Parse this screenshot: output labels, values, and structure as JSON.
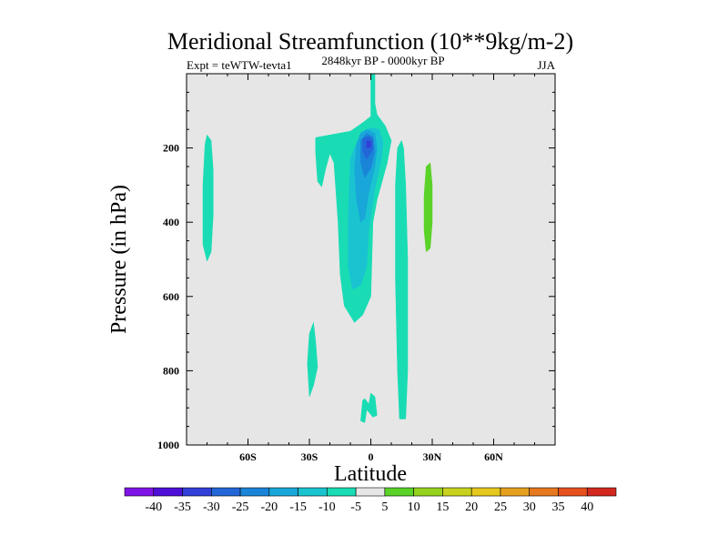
{
  "chart_data": {
    "type": "heatmap",
    "title": "Meridional Streamfunction (10**9kg/m-2)",
    "subtitle_left": "Expt = teWTW-tevta1",
    "subtitle_center": "2848kyr BP - 0000kyr BP",
    "subtitle_right": "JJA",
    "xlabel": "Latitude",
    "ylabel": "Pressure (in hPa)",
    "xlim": [
      -90,
      90
    ],
    "ylim": [
      1000,
      0
    ],
    "x_ticks": [
      {
        "value": -60,
        "label": "60S"
      },
      {
        "value": -30,
        "label": "30S"
      },
      {
        "value": 0,
        "label": "0"
      },
      {
        "value": 30,
        "label": "30N"
      },
      {
        "value": 60,
        "label": "60N"
      }
    ],
    "y_ticks": [
      {
        "value": 200,
        "label": "200"
      },
      {
        "value": 400,
        "label": "400"
      },
      {
        "value": 600,
        "label": "600"
      },
      {
        "value": 800,
        "label": "800"
      },
      {
        "value": 1000,
        "label": "1000"
      }
    ],
    "contour_levels": [
      -40,
      -35,
      -30,
      -25,
      -20,
      -15,
      -10,
      -5,
      5,
      10,
      15,
      20,
      25,
      30,
      35,
      40
    ],
    "colorbar_colors": [
      "#7f14e6",
      "#4e0fd6",
      "#3240d8",
      "#2366d8",
      "#1a85d8",
      "#19a6d8",
      "#19c4d0",
      "#19dcb4",
      "#e6e6e6",
      "#5ad228",
      "#96d21e",
      "#c8d21e",
      "#e6c81e",
      "#e6a01e",
      "#e6781e",
      "#e6501e",
      "#d2281e"
    ],
    "background_color": "#e6e6e6",
    "regions": [
      {
        "name": "sh-subtropic-cell-minus5",
        "level": "-5",
        "color": "#19dcb4",
        "points": [
          [
            -80,
            165
          ],
          [
            -78,
            180
          ],
          [
            -77,
            260
          ],
          [
            -77,
            380
          ],
          [
            -78,
            480
          ],
          [
            -80,
            505
          ],
          [
            -82,
            460
          ],
          [
            -82,
            300
          ],
          [
            -81,
            190
          ]
        ]
      },
      {
        "name": "main-tropical-cell-minus5",
        "level": "-5",
        "color": "#19dcb4",
        "points": [
          [
            -27,
            210
          ],
          [
            -26,
            290
          ],
          [
            -24,
            305
          ],
          [
            -22,
            255
          ],
          [
            -20,
            215
          ],
          [
            -18,
            240
          ],
          [
            -16,
            400
          ],
          [
            -15,
            540
          ],
          [
            -13,
            625
          ],
          [
            -8,
            670
          ],
          [
            -4,
            650
          ],
          [
            0,
            600
          ],
          [
            1,
            400
          ],
          [
            3,
            340
          ],
          [
            8,
            240
          ],
          [
            10,
            180
          ],
          [
            7,
            140
          ],
          [
            5,
            125
          ],
          [
            3,
            110
          ],
          [
            2,
            80
          ],
          [
            2,
            0
          ],
          [
            0,
            0
          ],
          [
            0,
            115
          ],
          [
            -4,
            132
          ],
          [
            -10,
            155
          ],
          [
            -20,
            165
          ],
          [
            -27,
            172
          ]
        ]
      },
      {
        "name": "main-tropical-cell-minus10",
        "level": "-10",
        "color": "#19c4d0",
        "points": [
          [
            -10,
            230
          ],
          [
            -11,
            380
          ],
          [
            -11,
            520
          ],
          [
            -9,
            580
          ],
          [
            -5,
            570
          ],
          [
            -2,
            520
          ],
          [
            -1,
            420
          ],
          [
            2,
            310
          ],
          [
            5,
            235
          ],
          [
            6,
            185
          ],
          [
            4,
            150
          ],
          [
            0,
            145
          ],
          [
            -5,
            165
          ],
          [
            -8,
            200
          ]
        ]
      },
      {
        "name": "main-tropical-cell-minus15",
        "level": "-15",
        "color": "#19a6d8",
        "points": [
          [
            -7,
            190
          ],
          [
            -8,
            260
          ],
          [
            -7,
            340
          ],
          [
            -5,
            400
          ],
          [
            -3,
            390
          ],
          [
            -1,
            320
          ],
          [
            2,
            250
          ],
          [
            3,
            200
          ],
          [
            2,
            160
          ],
          [
            -2,
            150
          ],
          [
            -5,
            160
          ]
        ]
      },
      {
        "name": "main-tropical-cell-minus20",
        "level": "-20",
        "color": "#1a85d8",
        "points": [
          [
            -5,
            180
          ],
          [
            -5,
            240
          ],
          [
            -3,
            280
          ],
          [
            0,
            255
          ],
          [
            2,
            210
          ],
          [
            1,
            170
          ],
          [
            -2,
            160
          ]
        ]
      },
      {
        "name": "main-tropical-cell-minus25",
        "level": "-25",
        "color": "#2366d8",
        "points": [
          [
            -4,
            175
          ],
          [
            -4,
            210
          ],
          [
            -2,
            230
          ],
          [
            1,
            205
          ],
          [
            1,
            178
          ],
          [
            -1,
            168
          ]
        ]
      },
      {
        "name": "main-tropical-cell-minus30",
        "level": "-30",
        "color": "#3240d8",
        "points": [
          [
            -2,
            180
          ],
          [
            -2,
            200
          ],
          [
            0,
            198
          ],
          [
            0,
            182
          ]
        ]
      },
      {
        "name": "nh-deep-cell-minus5",
        "level": "-5",
        "color": "#19dcb4",
        "points": [
          [
            13,
            200
          ],
          [
            12,
            300
          ],
          [
            12,
            550
          ],
          [
            13,
            800
          ],
          [
            14,
            930
          ],
          [
            17,
            930
          ],
          [
            18,
            800
          ],
          [
            18,
            500
          ],
          [
            17,
            300
          ],
          [
            16,
            200
          ],
          [
            15,
            180
          ]
        ]
      },
      {
        "name": "nh-midlat-cell-plus5",
        "level": "5",
        "color": "#5ad228",
        "points": [
          [
            27,
            250
          ],
          [
            26,
            330
          ],
          [
            26,
            420
          ],
          [
            27,
            480
          ],
          [
            29,
            470
          ],
          [
            30,
            400
          ],
          [
            30,
            300
          ],
          [
            29,
            240
          ]
        ]
      },
      {
        "name": "sh-lower-cell-minus5",
        "level": "-5",
        "color": "#19dcb4",
        "points": [
          [
            -30,
            700
          ],
          [
            -31,
            780
          ],
          [
            -30,
            870
          ],
          [
            -28,
            840
          ],
          [
            -26,
            790
          ],
          [
            -27,
            720
          ],
          [
            -28,
            670
          ]
        ]
      },
      {
        "name": "equator-surface-cell-minus5",
        "level": "-5",
        "color": "#19dcb4",
        "points": [
          [
            -4,
            880
          ],
          [
            -5,
            935
          ],
          [
            -3,
            940
          ],
          [
            -2,
            905
          ],
          [
            1,
            925
          ],
          [
            3,
            920
          ],
          [
            2,
            870
          ],
          [
            0,
            860
          ],
          [
            -1,
            890
          ],
          [
            -3,
            875
          ]
        ]
      }
    ]
  }
}
